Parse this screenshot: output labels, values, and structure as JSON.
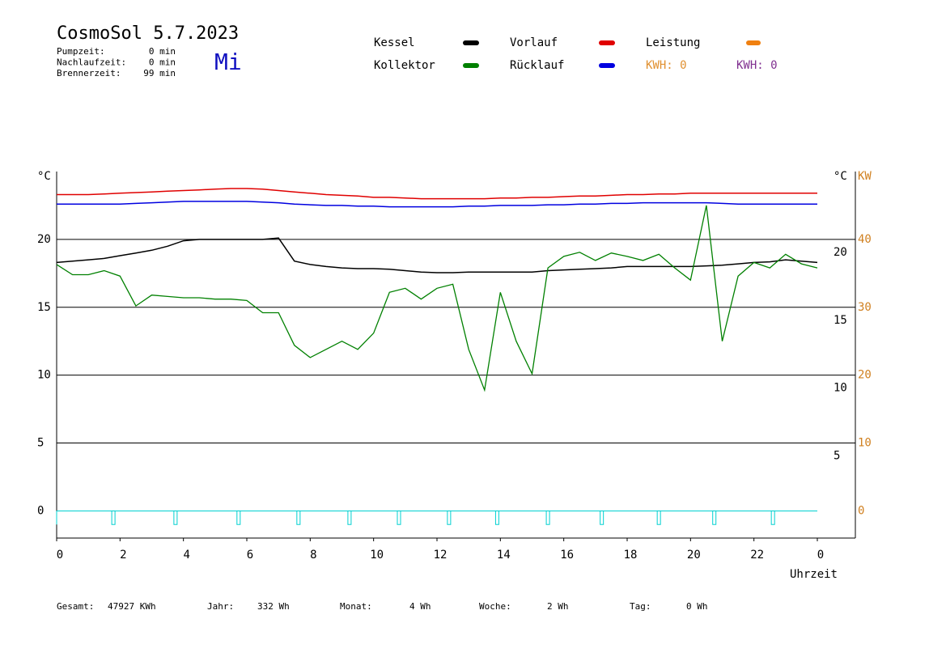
{
  "header": {
    "title": "CosmoSol 5.7.2023",
    "day": "Mi",
    "info": [
      {
        "label": "Pumpzeit:",
        "value": "0 min"
      },
      {
        "label": "Nachlaufzeit:",
        "value": "0 min"
      },
      {
        "label": "Brennerzeit:",
        "value": "99 min"
      }
    ]
  },
  "chart_data": {
    "type": "line",
    "y_unit": "°C",
    "y2_unit_left": "°C",
    "y2_unit": "KW",
    "xlabel": "Uhrzeit",
    "xlim": [
      0,
      25.2
    ],
    "xticks": [
      0,
      2,
      4,
      6,
      8,
      10,
      12,
      14,
      16,
      18,
      20,
      22,
      {
        "value": 24,
        "label": "0"
      }
    ],
    "ylim": [
      -2,
      25
    ],
    "yticks": [
      0,
      5,
      10,
      15,
      20
    ],
    "y2lim": [
      -4,
      50
    ],
    "y2ticks": [
      0,
      10,
      20,
      30,
      40
    ],
    "grid": true,
    "x": [
      0,
      0.5,
      1,
      1.5,
      2,
      2.5,
      3,
      3.5,
      4,
      4.5,
      5,
      5.5,
      6,
      6.5,
      7,
      7.5,
      8,
      8.5,
      9,
      9.5,
      10,
      10.5,
      11,
      11.5,
      12,
      12.5,
      13,
      13.5,
      14,
      14.5,
      15,
      15.5,
      16,
      16.5,
      17,
      17.5,
      18,
      18.5,
      19,
      19.5,
      20,
      20.5,
      21,
      21.5,
      22,
      22.5,
      23,
      23.5,
      24
    ],
    "series": [
      {
        "name": "Kessel",
        "color": "#000000",
        "values": [
          18.3,
          18.4,
          18.5,
          18.6,
          18.8,
          19.0,
          19.2,
          19.5,
          19.9,
          20,
          20,
          20,
          20,
          20,
          20.1,
          18.4,
          18.15,
          18.0,
          17.9,
          17.85,
          17.85,
          17.8,
          17.7,
          17.6,
          17.55,
          17.55,
          17.6,
          17.6,
          17.6,
          17.6,
          17.6,
          17.7,
          17.75,
          17.8,
          17.85,
          17.9,
          18.0,
          18.0,
          18.0,
          18.0,
          18.0,
          18.05,
          18.1,
          18.2,
          18.3,
          18.35,
          18.5,
          18.4,
          18.3
        ]
      },
      {
        "name": "Kollektor",
        "color": "#008000",
        "values": [
          18.15,
          17.4,
          17.4,
          17.7,
          17.3,
          15.1,
          15.9,
          15.8,
          15.7,
          15.7,
          15.6,
          15.6,
          15.5,
          14.6,
          14.6,
          12.2,
          11.3,
          11.9,
          12.5,
          11.9,
          13.1,
          16.1,
          16.4,
          15.6,
          16.4,
          16.7,
          11.9,
          8.9,
          16.1,
          12.5,
          10.1,
          17.9,
          18.75,
          19.05,
          18.45,
          19.0,
          18.75,
          18.45,
          18.9,
          17.9,
          17.0,
          22.5,
          12.5,
          17.3,
          18.3,
          17.9,
          18.9,
          18.2,
          17.9
        ]
      },
      {
        "name": "Vorlauf",
        "color": "#e00000",
        "values": [
          23.3,
          23.3,
          23.3,
          23.35,
          23.4,
          23.45,
          23.5,
          23.55,
          23.6,
          23.65,
          23.7,
          23.75,
          23.75,
          23.7,
          23.6,
          23.5,
          23.4,
          23.3,
          23.25,
          23.2,
          23.1,
          23.1,
          23.05,
          23.0,
          23.0,
          23.0,
          23.0,
          23.0,
          23.05,
          23.05,
          23.1,
          23.1,
          23.15,
          23.2,
          23.2,
          23.25,
          23.3,
          23.3,
          23.35,
          23.35,
          23.4,
          23.4,
          23.4,
          23.4,
          23.4,
          23.4,
          23.4,
          23.4,
          23.4
        ]
      },
      {
        "name": "Rücklauf",
        "color": "#0000e0",
        "values": [
          22.6,
          22.6,
          22.6,
          22.6,
          22.6,
          22.65,
          22.7,
          22.75,
          22.8,
          22.8,
          22.8,
          22.8,
          22.8,
          22.75,
          22.7,
          22.6,
          22.55,
          22.5,
          22.5,
          22.45,
          22.45,
          22.4,
          22.4,
          22.4,
          22.4,
          22.4,
          22.45,
          22.45,
          22.5,
          22.5,
          22.5,
          22.55,
          22.55,
          22.6,
          22.6,
          22.65,
          22.65,
          22.7,
          22.7,
          22.7,
          22.7,
          22.7,
          22.65,
          22.6,
          22.6,
          22.6,
          22.6,
          22.6,
          22.6
        ]
      }
    ],
    "power": {
      "name": "Leistung",
      "color": "#f08010",
      "kwh": [
        {
          "label": "KWH: 0",
          "color": "#e09030"
        },
        {
          "label": "KWH: 0",
          "color": "#803090"
        }
      ]
    },
    "pulses": {
      "color": "#00d0d0",
      "level": 0,
      "low": -1,
      "x": [
        1.79,
        3.75,
        5.74,
        7.63,
        9.24,
        10.8,
        12.38,
        13.9,
        15.5,
        17.2,
        19.0,
        20.75,
        22.6
      ]
    }
  },
  "footer": [
    {
      "label": "Gesamt:",
      "value": "47927 KWh"
    },
    {
      "label": "Jahr:",
      "value": "332 Wh"
    },
    {
      "label": "Monat:",
      "value": "4 Wh"
    },
    {
      "label": "Woche:",
      "value": "2 Wh"
    },
    {
      "label": "Tag:",
      "value": "0 Wh"
    }
  ]
}
